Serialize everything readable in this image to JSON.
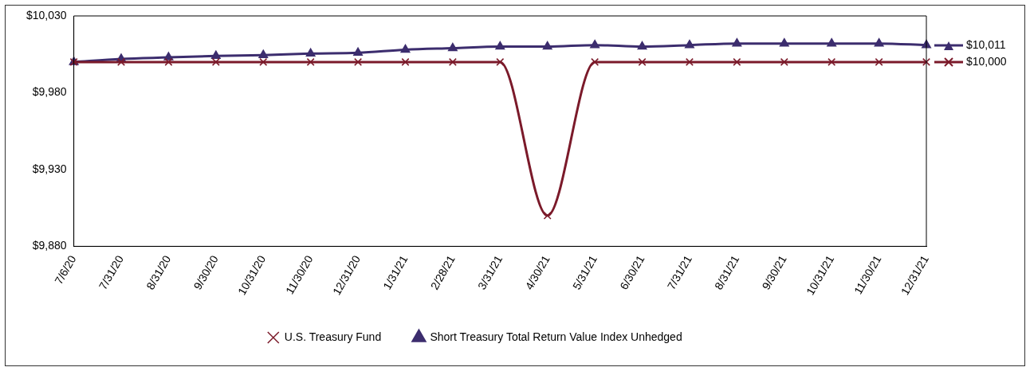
{
  "chart_data": {
    "type": "line",
    "categories": [
      "7/6/20",
      "7/31/20",
      "8/31/20",
      "9/30/20",
      "10/31/20",
      "11/30/20",
      "12/31/20",
      "1/31/21",
      "2/28/21",
      "3/31/21",
      "4/30/21",
      "5/31/21",
      "6/30/21",
      "7/31/21",
      "8/31/21",
      "9/30/21",
      "10/31/21",
      "11/30/21",
      "12/31/21"
    ],
    "series": [
      {
        "name": "U.S. Treasury Fund",
        "color": "#7b1a2a",
        "marker": "cross",
        "values": [
          10000,
          10000,
          10000,
          10000,
          10000,
          10000,
          10000,
          10000,
          10000,
          10000,
          9900,
          10000,
          10000,
          10000,
          10000,
          10000,
          10000,
          10000,
          10000
        ],
        "value_labels": [
          null,
          null,
          null,
          null,
          null,
          null,
          null,
          null,
          null,
          null,
          null,
          null,
          null,
          null,
          null,
          null,
          null,
          null,
          "$10,000"
        ]
      },
      {
        "name": "Short Treasury Total Return Value Index Unhedged",
        "color": "#3c2d6e",
        "marker": "triangle",
        "values": [
          10000,
          10002,
          10003,
          10004,
          10004.5,
          10005.5,
          10006,
          10008,
          10009,
          10010,
          10010,
          10011,
          10010,
          10011,
          10012,
          10012,
          10012,
          10012,
          10011
        ],
        "value_labels": [
          null,
          null,
          null,
          null,
          null,
          null,
          null,
          null,
          null,
          null,
          null,
          null,
          null,
          null,
          null,
          null,
          null,
          null,
          "$10,011"
        ]
      }
    ],
    "ylim": [
      9880,
      10030
    ],
    "yticks": [
      {
        "value": 9880,
        "label": "$9,880"
      },
      {
        "value": 9930,
        "label": "$9,930"
      },
      {
        "value": 9980,
        "label": "$9,980"
      },
      {
        "value": 10030,
        "label": "$10,030"
      }
    ],
    "grid": false,
    "legend": "bottom"
  }
}
